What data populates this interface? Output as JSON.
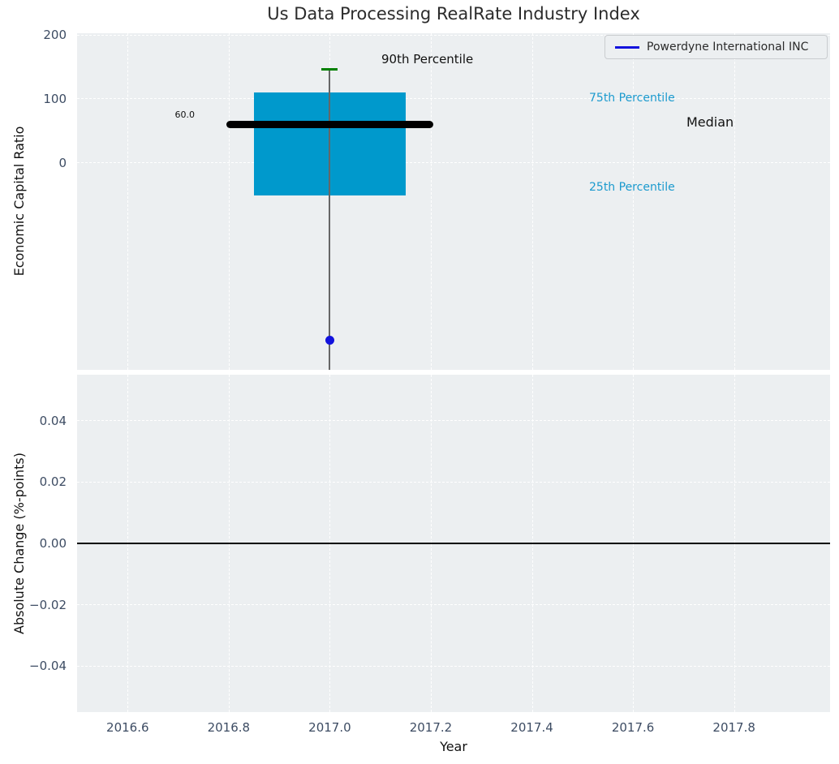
{
  "figure": {
    "title": "Us Data Processing RealRate Industry Index"
  },
  "legend": {
    "label": "Powerdyne International INC"
  },
  "axes": {
    "xlabel": "Year",
    "xlim": [
      2016.5,
      2017.99
    ],
    "xticks": [
      {
        "label": "2016.6",
        "value": 2016.6
      },
      {
        "label": "2016.8",
        "value": 2016.8
      },
      {
        "label": "2017.0",
        "value": 2017.0
      },
      {
        "label": "2017.2",
        "value": 2017.2
      },
      {
        "label": "2017.4",
        "value": 2017.4
      },
      {
        "label": "2017.6",
        "value": 2017.6
      },
      {
        "label": "2017.8",
        "value": 2017.8
      }
    ],
    "top": {
      "ylabel": "Economic Capital Ratio",
      "ylim": [
        -325,
        203
      ],
      "yticks": [
        {
          "label": "200",
          "value": 200
        },
        {
          "label": "100",
          "value": 100
        },
        {
          "label": "0",
          "value": 0
        }
      ]
    },
    "bottom": {
      "ylabel": "Absolute Change (%-points)",
      "ylim": [
        -0.055,
        0.055
      ],
      "yticks": [
        {
          "label": "0.04",
          "value": 0.04
        },
        {
          "label": "0.02",
          "value": 0.02
        },
        {
          "label": "0.00",
          "value": 0.0
        },
        {
          "label": "−0.02",
          "value": -0.02
        },
        {
          "label": "−0.04",
          "value": -0.04
        }
      ]
    }
  },
  "annotations": {
    "p90": "90th Percentile",
    "p75": "75th Percentile",
    "median": "Median",
    "p25": "25th Percentile",
    "median_value": "60.0"
  },
  "colors": {
    "box_fill": "#0099cc",
    "median_line": "#000000",
    "whisker": "#666666",
    "cap_90th": "#008000",
    "company_marker": "#1212dd",
    "percentile_text": "#1b9ace",
    "tick_text": "#3d4c63",
    "zero_line": "#000000",
    "plot_bg": "#eceff1",
    "grid": "#ffffff"
  },
  "chart_data": [
    {
      "type": "boxplot",
      "title": "Us Data Processing RealRate Industry Index",
      "xlabel": "Year",
      "ylabel": "Economic Capital Ratio",
      "xlim": [
        2016.5,
        2017.99
      ],
      "ylim": [
        -325,
        203
      ],
      "grid": true,
      "legend_position": "upper right",
      "box": {
        "x": 2017.0,
        "median": 60.0,
        "q1": -51,
        "q3": 110,
        "p90": 146,
        "whisker_low_clipped": true,
        "box_halfwidth": 0.15,
        "median_halfwidth": 0.205
      },
      "series": [
        {
          "name": "Powerdyne International INC",
          "type": "scatter",
          "color": "#1212dd",
          "points": [
            {
              "x": 2017.0,
              "y": -278
            }
          ]
        }
      ],
      "annotations": [
        "90th Percentile",
        "75th Percentile",
        "Median",
        "25th Percentile",
        "60.0"
      ]
    },
    {
      "type": "line",
      "title": "",
      "xlabel": "Year",
      "ylabel": "Absolute Change (%-points)",
      "xlim": [
        2016.5,
        2017.99
      ],
      "ylim": [
        -0.055,
        0.055
      ],
      "grid": true,
      "x": [],
      "y": [],
      "zero_line": 0.0,
      "note": "no data series visible; only zero reference line"
    }
  ]
}
